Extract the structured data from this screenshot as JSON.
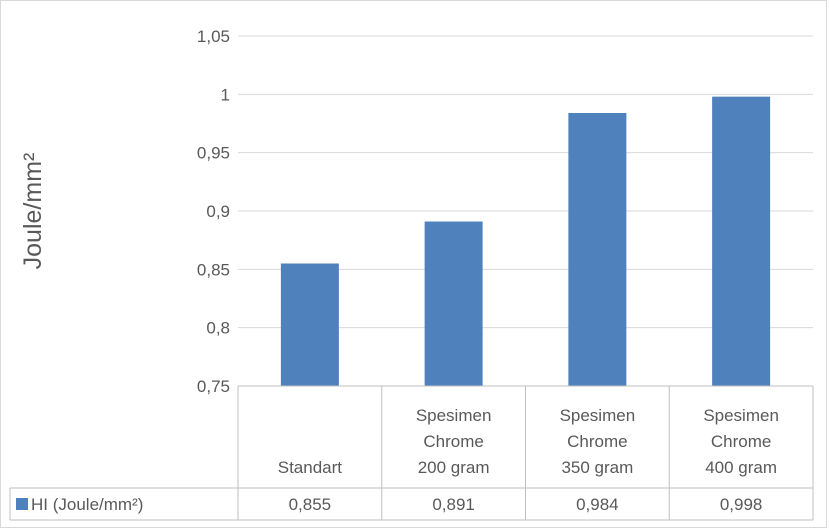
{
  "chart_data": {
    "type": "bar",
    "ylabel": "Joule/mm²",
    "ylim": [
      0.75,
      1.05
    ],
    "yticks": [
      0.75,
      0.8,
      0.85,
      0.9,
      0.95,
      1,
      1.05
    ],
    "ytick_labels": [
      "0,75",
      "0,8",
      "0,85",
      "0,9",
      "0,95",
      "1",
      "1,05"
    ],
    "categories": [
      [
        "Standart"
      ],
      [
        "Spesimen",
        "Chrome",
        "200 gram"
      ],
      [
        "Spesimen",
        "Chrome",
        "350 gram"
      ],
      [
        "Spesimen",
        "Chrome",
        "400 gram"
      ]
    ],
    "series": [
      {
        "name": "HI (Joule/mm²)",
        "values": [
          0.855,
          0.891,
          0.984,
          0.998
        ],
        "value_labels": [
          "0,855",
          "0,891",
          "0,984",
          "0,998"
        ],
        "color": "#4f81bd"
      }
    ],
    "grid": true,
    "legend": "data-table"
  }
}
